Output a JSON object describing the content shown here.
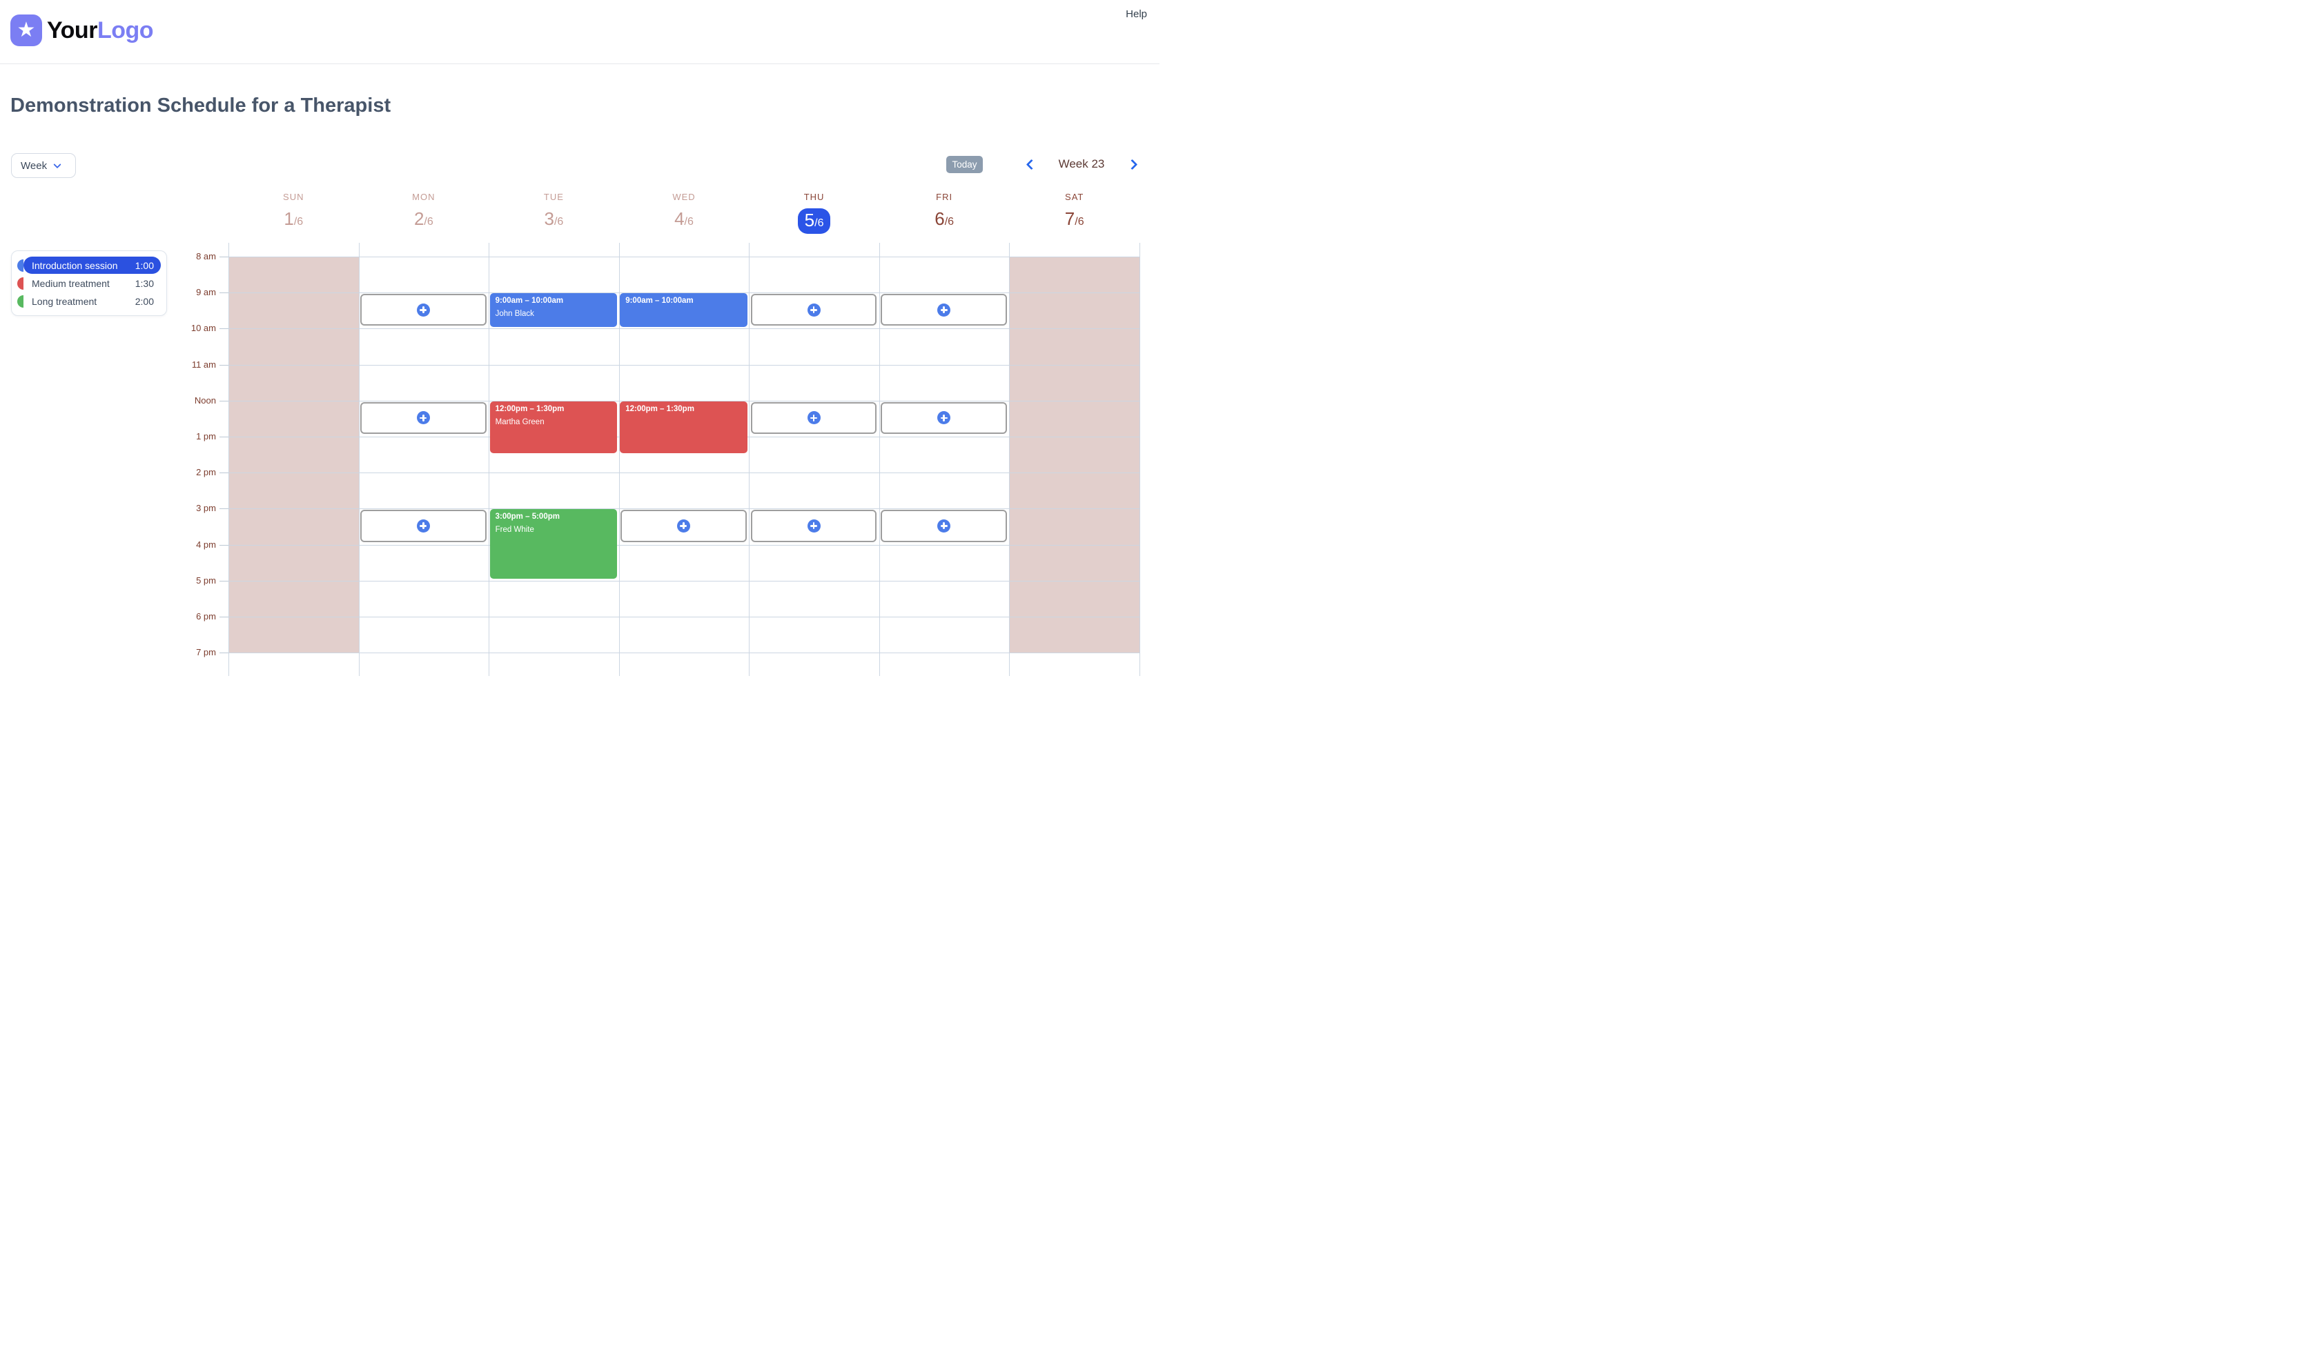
{
  "header": {
    "logo_your": "Your",
    "logo_brand": "Logo",
    "star_icon": "★",
    "help": "Help"
  },
  "page": {
    "title": "Demonstration Schedule for a Therapist"
  },
  "toolbar": {
    "view": "Week",
    "today": "Today",
    "range_label": "Week 23"
  },
  "legend": {
    "items": [
      {
        "name": "Introduction session",
        "duration": "1:00",
        "color": "#4c7ce8",
        "selected": true
      },
      {
        "name": "Medium treatment",
        "duration": "1:30",
        "color": "#dd5353",
        "selected": false
      },
      {
        "name": "Long treatment",
        "duration": "2:00",
        "color": "#58b960",
        "selected": false
      }
    ]
  },
  "calendar": {
    "days": [
      {
        "label": "SUN",
        "day": "1",
        "month": "/6",
        "state": "past",
        "unavailable": true
      },
      {
        "label": "MON",
        "day": "2",
        "month": "/6",
        "state": "past",
        "unavailable": false
      },
      {
        "label": "TUE",
        "day": "3",
        "month": "/6",
        "state": "past",
        "unavailable": false
      },
      {
        "label": "WED",
        "day": "4",
        "month": "/6",
        "state": "past",
        "unavailable": false
      },
      {
        "label": "THU",
        "day": "5",
        "month": "/6",
        "state": "today",
        "unavailable": false
      },
      {
        "label": "FRI",
        "day": "6",
        "month": "/6",
        "state": "future",
        "unavailable": false
      },
      {
        "label": "SAT",
        "day": "7",
        "month": "/6",
        "state": "future",
        "unavailable": true
      }
    ],
    "times": [
      "8 am",
      "9 am",
      "10 am",
      "11 am",
      "Noon",
      "1 pm",
      "2 pm",
      "3 pm",
      "4 pm",
      "5 pm",
      "6 pm",
      "7 pm"
    ],
    "events": [
      {
        "day": 2,
        "start": 9,
        "end": 10,
        "time_label": "9:00am – 10:00am",
        "client": "John Black",
        "color": "#4c7ce8"
      },
      {
        "day": 3,
        "start": 9,
        "end": 10,
        "time_label": "9:00am – 10:00am",
        "client": "",
        "color": "#4c7ce8"
      },
      {
        "day": 2,
        "start": 12,
        "end": 13.5,
        "time_label": "12:00pm – 1:30pm",
        "client": "Martha Green",
        "color": "#dd5353"
      },
      {
        "day": 3,
        "start": 12,
        "end": 13.5,
        "time_label": "12:00pm – 1:30pm",
        "client": "",
        "color": "#dd5353"
      },
      {
        "day": 2,
        "start": 15,
        "end": 17,
        "time_label": "3:00pm – 5:00pm",
        "client": "Fred White",
        "color": "#58b960"
      }
    ],
    "open_slots": [
      {
        "day": 1,
        "start": 9,
        "end": 10
      },
      {
        "day": 4,
        "start": 9,
        "end": 10
      },
      {
        "day": 5,
        "start": 9,
        "end": 10
      },
      {
        "day": 1,
        "start": 12,
        "end": 13
      },
      {
        "day": 4,
        "start": 12,
        "end": 13
      },
      {
        "day": 5,
        "start": 12,
        "end": 13
      },
      {
        "day": 1,
        "start": 15,
        "end": 16
      },
      {
        "day": 3,
        "start": 15,
        "end": 16
      },
      {
        "day": 4,
        "start": 15,
        "end": 16
      },
      {
        "day": 5,
        "start": 15,
        "end": 16
      }
    ]
  },
  "colors": {
    "accent_blue": "#2b54e7",
    "unavailable_shade": "#e2cfcc",
    "grid_line": "#ccd6e2",
    "day_past": "#c49c95",
    "day_future": "#8a4537",
    "time_label": "#7c3d2e"
  }
}
